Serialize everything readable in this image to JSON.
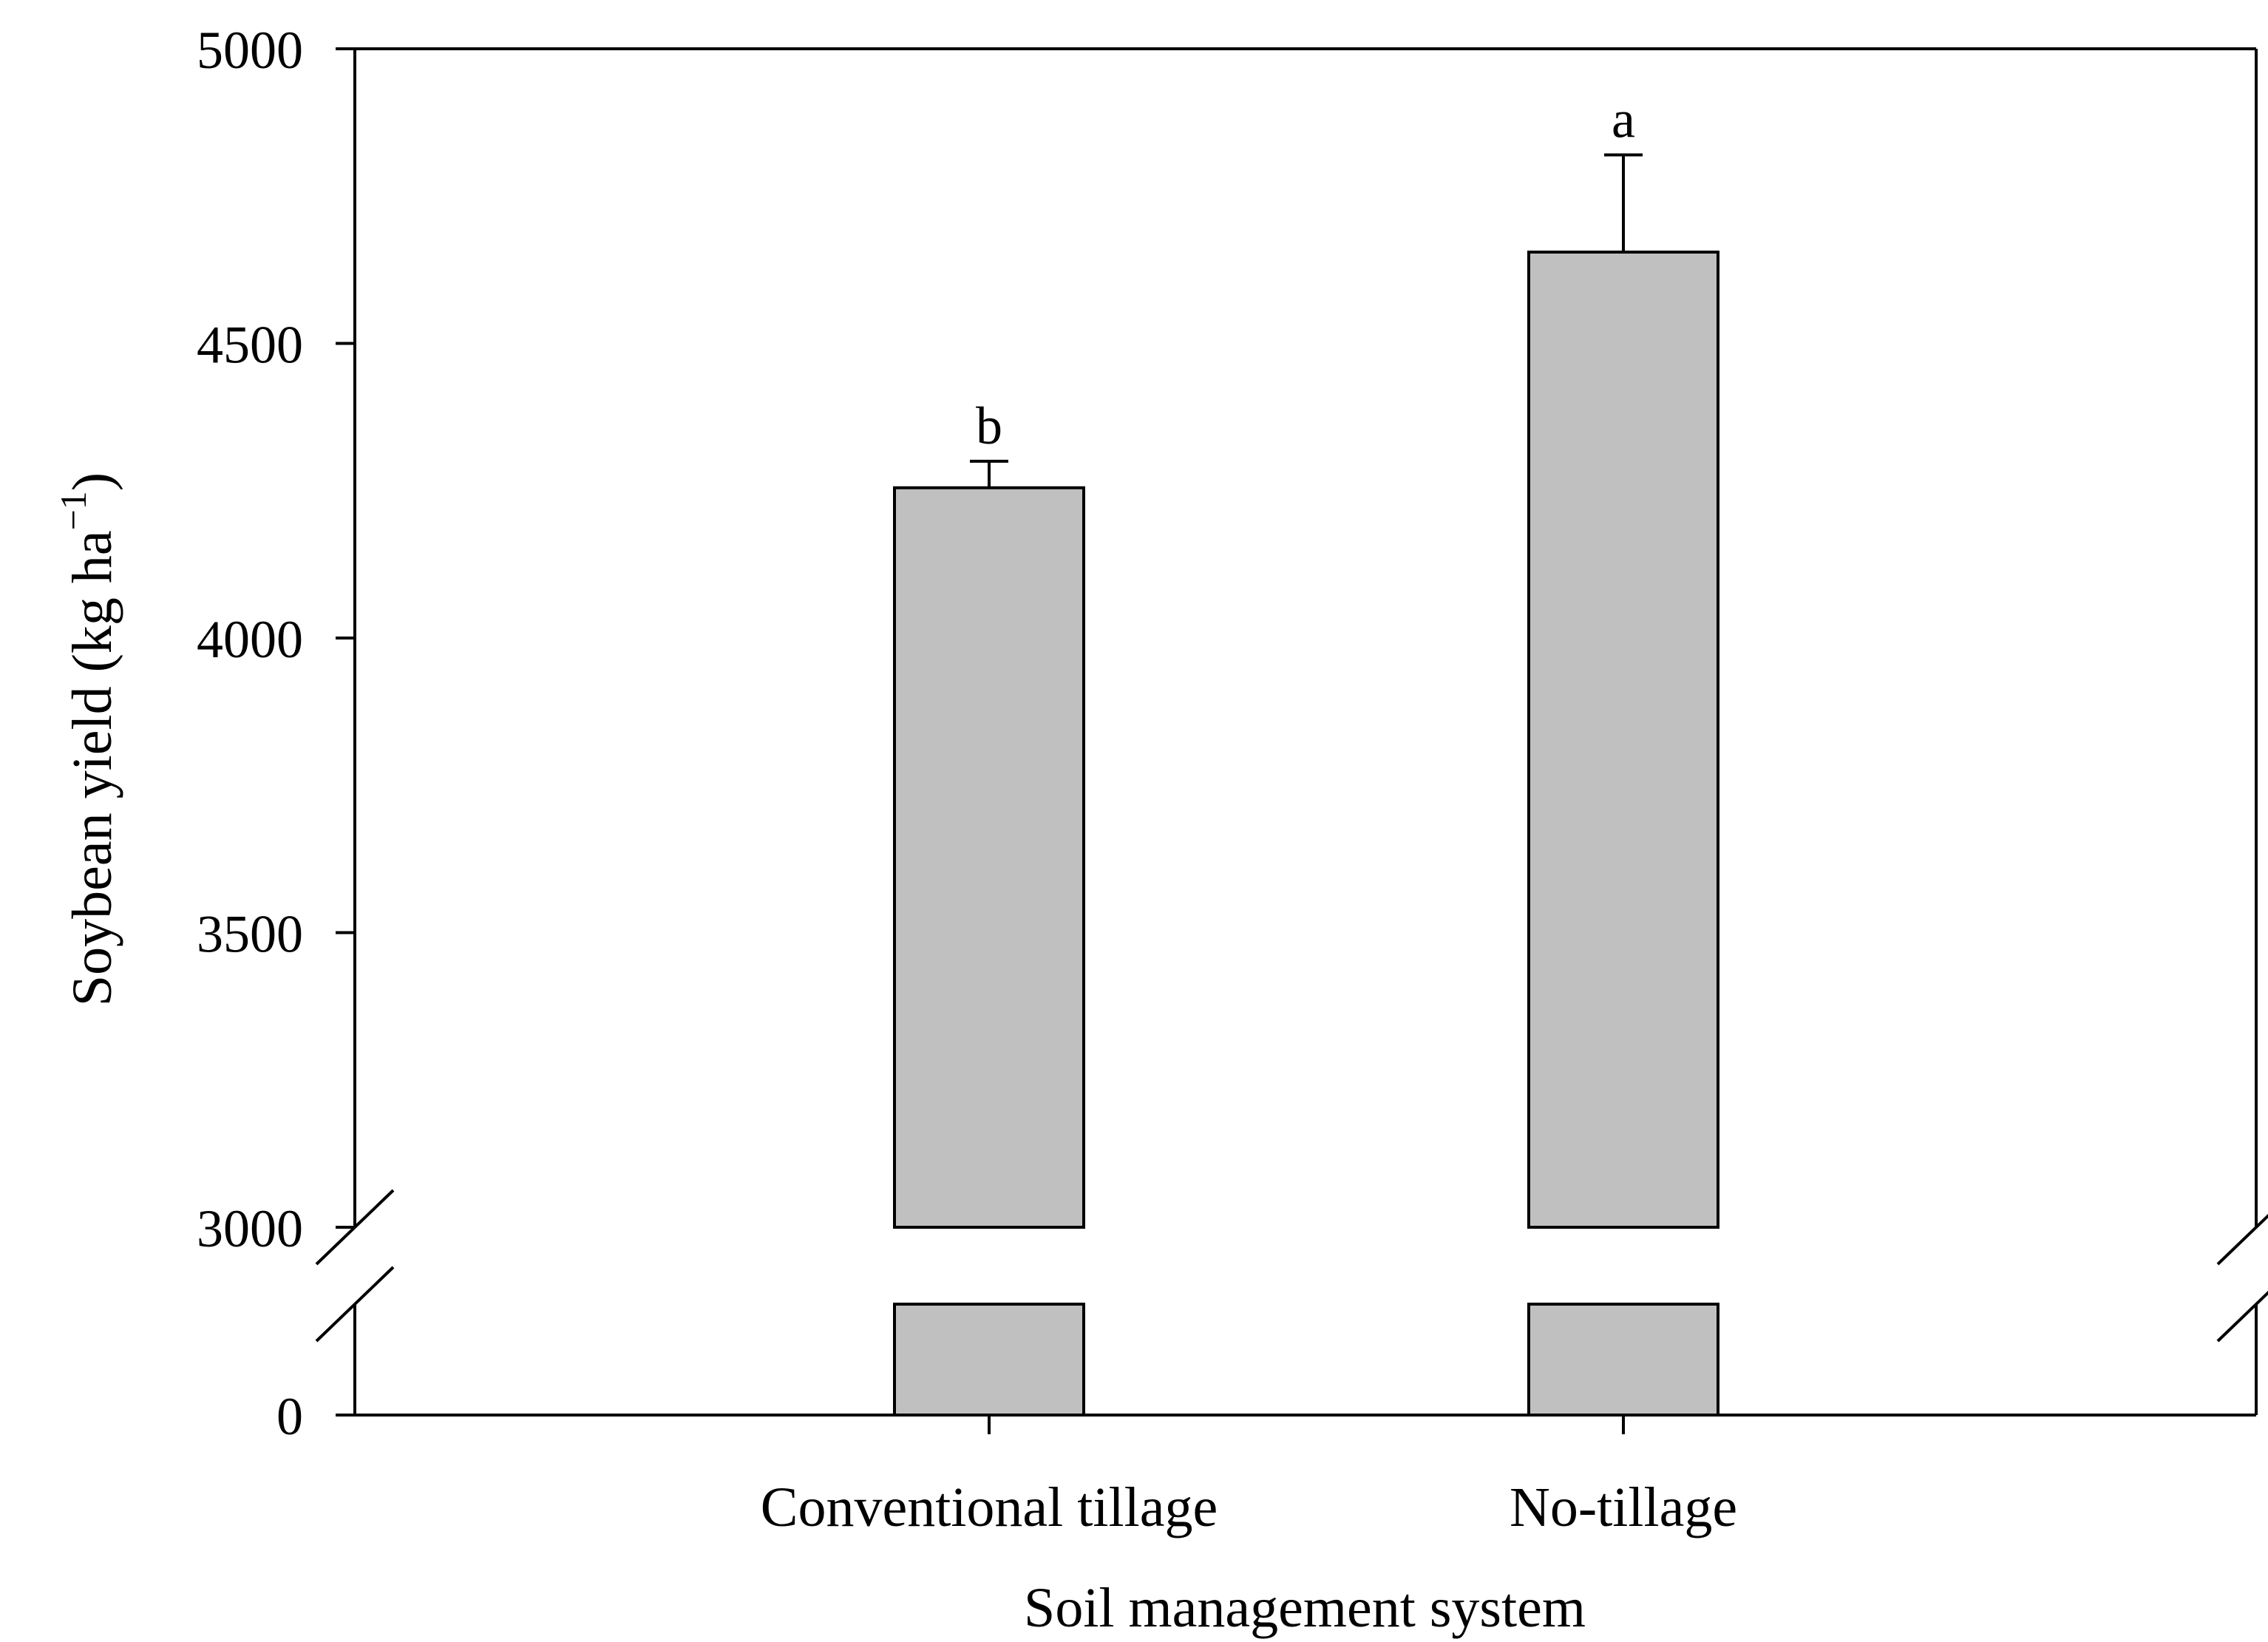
{
  "chart_data": {
    "type": "bar",
    "title": "",
    "xlabel": "Soil management system",
    "ylabel": {
      "text": "Soybean yield (kg ha",
      "superscript": "−1",
      "suffix": ")"
    },
    "categories": [
      "Conventional tillage",
      "No-tillage"
    ],
    "values": [
      4255,
      4655
    ],
    "errors": [
      45,
      165
    ],
    "significance": [
      "b",
      "a"
    ],
    "y_axis": {
      "broken": true,
      "lower_ticks": [
        0
      ],
      "upper_ticks": [
        3000,
        3500,
        4000,
        4500,
        5000
      ],
      "lower_segment": [
        0,
        2800
      ],
      "upper_segment": [
        3000,
        5000
      ],
      "tick_labels": [
        "0",
        "3000",
        "3500",
        "4000",
        "4500",
        "5000"
      ]
    },
    "bar_color": "#c0c0c0",
    "edge_color": "#000000",
    "grid": false,
    "legend": "none"
  }
}
